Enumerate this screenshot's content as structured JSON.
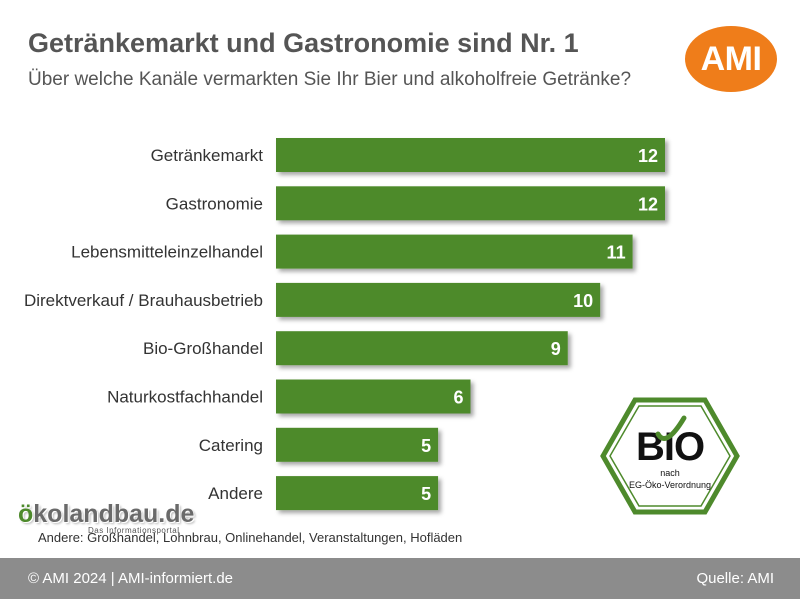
{
  "header": {
    "title": "Getränkemarkt und Gastronomie sind Nr. 1",
    "subtitle": "Über welche Kanäle vermarkten Sie Ihr Bier und alkoholfreie Getränke?"
  },
  "ami_logo": {
    "text": "AMI"
  },
  "chart_data": {
    "type": "bar",
    "orientation": "horizontal",
    "title": "Getränkemarkt und Gastronomie sind Nr. 1",
    "subtitle": "Über welche Kanäle vermarkten Sie Ihr Bier und alkoholfreie Getränke?",
    "categories": [
      "Getränkemarkt",
      "Gastronomie",
      "Lebensmitteleinzelhandel",
      "Direktverkauf / Brauhausbetrieb",
      "Bio-Großhandel",
      "Naturkostfachhandel",
      "Catering",
      "Andere"
    ],
    "values": [
      12,
      12,
      11,
      10,
      9,
      6,
      5,
      5
    ],
    "xlim": [
      0,
      12
    ],
    "grid": false,
    "legend": "none",
    "data_labels": true,
    "bar_color": "#4e8a2c"
  },
  "logos": {
    "oeko_prefix": "ö",
    "oeko_rest": "kolandbau.de",
    "oeko_tagline": "Das Informationsportal",
    "bio_main": "BIO",
    "bio_line1": "nach",
    "bio_line2": "EG-Öko-Verordnung"
  },
  "note": "Andere: Großhandel, Lohnbrau, Onlinehandel, Veranstaltungen, Hofläden",
  "footer": {
    "left": "© AMI 2024 | AMI-informiert.de",
    "right": "Quelle: AMI"
  },
  "colors": {
    "accent_orange": "#ef7d1a",
    "bar_green": "#4e8a2c",
    "footer_gray": "#8c8c8c",
    "text_gray": "#555555"
  }
}
